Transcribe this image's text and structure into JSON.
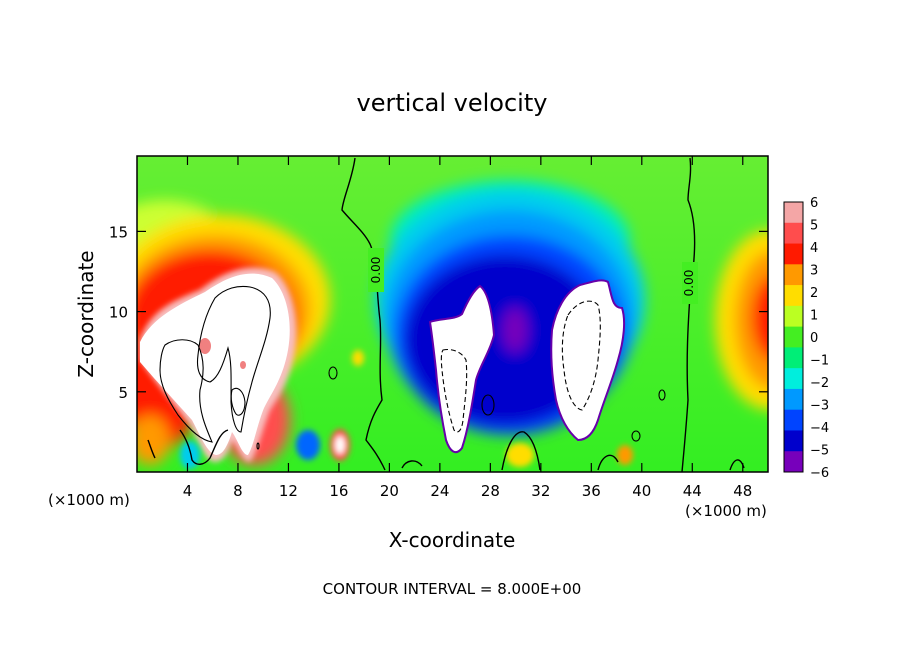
{
  "chart_data": {
    "type": "heatmap",
    "title": "vertical velocity",
    "xlabel": "X-coordinate",
    "ylabel": "Z-coordinate",
    "x_units_left": "(×1000 m)",
    "x_units_right": "(×1000 m)",
    "xlim": [
      0,
      50
    ],
    "ylim": [
      0,
      19.7
    ],
    "x_ticks": [
      4,
      8,
      12,
      16,
      20,
      24,
      28,
      32,
      36,
      40,
      44,
      48
    ],
    "x_tick_labels": [
      "4",
      "8",
      "12",
      "16",
      "20",
      "24",
      "28",
      "32",
      "36",
      "40",
      "44",
      "48"
    ],
    "y_ticks": [
      5,
      10,
      15
    ],
    "y_tick_labels": [
      "5",
      "10",
      "15"
    ],
    "colorbar": {
      "levels": [
        6,
        5,
        4,
        3,
        2,
        1,
        0,
        -1,
        -2,
        -3,
        -4,
        -5,
        -6
      ],
      "labels": [
        "6",
        "5",
        "4",
        "3",
        "2",
        "1",
        "0",
        "−1",
        "−2",
        "−3",
        "−4",
        "−5",
        "−6"
      ],
      "colors": [
        "#f4a6a6",
        "#ff4d4d",
        "#ff1a00",
        "#ff9900",
        "#ffdd00",
        "#bbff22",
        "#44ee22",
        "#00ee77",
        "#00eedd",
        "#0099ff",
        "#0044ff",
        "#0000cc",
        "#7700bb"
      ]
    },
    "contour_labels": [
      {
        "text": "0.00",
        "x": 19.0,
        "z": 13.5
      },
      {
        "text": "0.00",
        "x": 43.5,
        "z": 12.5
      }
    ],
    "footnote": "CONTOUR INTERVAL = 8.000E+00",
    "features": [
      {
        "kind": "updraft",
        "x_range": [
          0,
          12
        ],
        "z_range": [
          1,
          12
        ],
        "min_value": 6
      },
      {
        "kind": "downdraft",
        "x_range": [
          23,
          28
        ],
        "z_range": [
          1,
          12
        ],
        "min_value": -6
      },
      {
        "kind": "downdraft",
        "x_range": [
          33,
          39
        ],
        "z_range": [
          2,
          12
        ],
        "min_value": -6
      },
      {
        "kind": "updraft",
        "x_range": [
          46,
          50
        ],
        "z_range": [
          6,
          14
        ],
        "min_value": 4
      }
    ]
  }
}
